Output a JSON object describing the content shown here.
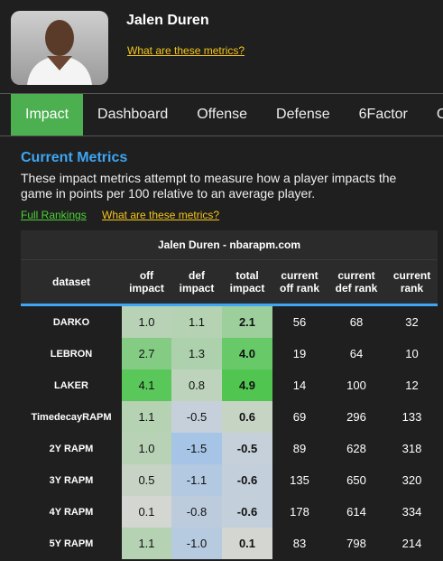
{
  "header": {
    "name": "Jalen Duren",
    "link": "What are these metrics?"
  },
  "tabs": [
    "Impact",
    "Dashboard",
    "Offense",
    "Defense",
    "6Factor",
    "C"
  ],
  "section": {
    "title": "Current Metrics",
    "description": "These impact metrics attempt to measure how a player impacts the game in points per 100 relative to an average player.",
    "links": [
      "Full Rankings",
      "What are these metrics?"
    ]
  },
  "table": {
    "title": "Jalen Duren - nbarapm.com",
    "columns": [
      "dataset",
      "off impact",
      "def impact",
      "total impact",
      "current off rank",
      "current def rank",
      "current rank"
    ],
    "rows": [
      [
        "DARKO",
        "1.0",
        "1.1",
        "2.1",
        "56",
        "68",
        "32"
      ],
      [
        "LEBRON",
        "2.7",
        "1.3",
        "4.0",
        "19",
        "64",
        "10"
      ],
      [
        "LAKER",
        "4.1",
        "0.8",
        "4.9",
        "14",
        "100",
        "12"
      ],
      [
        "TimedecayRAPM",
        "1.1",
        "-0.5",
        "0.6",
        "69",
        "296",
        "133"
      ],
      [
        "2Y RAPM",
        "1.0",
        "-1.5",
        "-0.5",
        "89",
        "628",
        "318"
      ],
      [
        "3Y RAPM",
        "0.5",
        "-1.1",
        "-0.6",
        "135",
        "650",
        "320"
      ],
      [
        "4Y RAPM",
        "0.1",
        "-0.8",
        "-0.6",
        "178",
        "614",
        "334"
      ],
      [
        "5Y RAPM",
        "1.1",
        "-1.0",
        "0.1",
        "83",
        "798",
        "214"
      ]
    ]
  }
}
